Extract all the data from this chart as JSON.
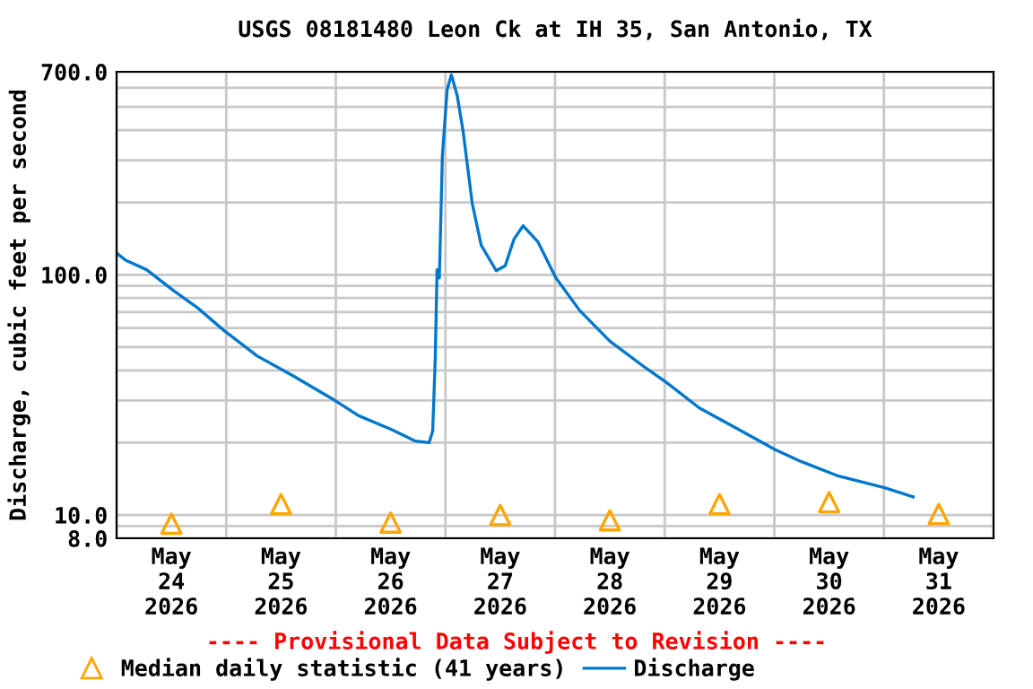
{
  "chart_data": {
    "type": "line",
    "title": "USGS 08181480 Leon Ck at IH 35, San Antonio, TX",
    "ylabel": "Discharge, cubic feet per second",
    "log": "y",
    "xlim": [
      "2026-05-24T00:00",
      "2026-06-01T00:00"
    ],
    "xticks": [
      {
        "value": "2026-05-24T00:00",
        "label": null
      },
      {
        "value": "2026-05-24T12:00",
        "label": "May\n24\n2026"
      },
      {
        "value": "2026-05-25T00:00",
        "label": null
      },
      {
        "value": "2026-05-25T12:00",
        "label": "May\n25\n2026"
      },
      {
        "value": "2026-05-26T00:00",
        "label": null
      },
      {
        "value": "2026-05-26T12:00",
        "label": "May\n26\n2026"
      },
      {
        "value": "2026-05-27T00:00",
        "label": null
      },
      {
        "value": "2026-05-27T12:00",
        "label": "May\n27\n2026"
      },
      {
        "value": "2026-05-28T00:00",
        "label": null
      },
      {
        "value": "2026-05-28T12:00",
        "label": "May\n28\n2026"
      },
      {
        "value": "2026-05-29T00:00",
        "label": null
      },
      {
        "value": "2026-05-29T12:00",
        "label": "May\n29\n2026"
      },
      {
        "value": "2026-05-30T00:00",
        "label": null
      },
      {
        "value": "2026-05-30T12:00",
        "label": "May\n30\n2026"
      },
      {
        "value": "2026-05-31T00:00",
        "label": null
      },
      {
        "value": "2026-05-31T12:00",
        "label": "May\n31\n2026"
      },
      {
        "value": "2026-06-01T00:00",
        "label": null
      }
    ],
    "ylim": [
      8,
      700
    ],
    "yticks": [
      {
        "value": 8,
        "label": "8.0"
      },
      {
        "value": 9,
        "label": null
      },
      {
        "value": 10,
        "label": "10.0"
      },
      {
        "value": 20,
        "label": null
      },
      {
        "value": 30,
        "label": null
      },
      {
        "value": 40,
        "label": null
      },
      {
        "value": 50,
        "label": null
      },
      {
        "value": 60,
        "label": null
      },
      {
        "value": 70,
        "label": null
      },
      {
        "value": 80,
        "label": null
      },
      {
        "value": 90,
        "label": null
      },
      {
        "value": 100,
        "label": "100.0"
      },
      {
        "value": 200,
        "label": null
      },
      {
        "value": 300,
        "label": null
      },
      {
        "value": 400,
        "label": null
      },
      {
        "value": 500,
        "label": null
      },
      {
        "value": 600,
        "label": null
      },
      {
        "value": 700,
        "label": "700.0"
      }
    ],
    "grid": true,
    "legend": "bottom",
    "series": [
      {
        "name": "Median daily statistic (41 years)",
        "type": "scatter",
        "marker": "triangle",
        "color": "#ffa500",
        "x": [
          "2026-05-24T12:00",
          "2026-05-25T12:00",
          "2026-05-26T12:00",
          "2026-05-27T12:00",
          "2026-05-28T12:00",
          "2026-05-29T12:00",
          "2026-05-30T12:00",
          "2026-05-31T12:00"
        ],
        "values": [
          9.2,
          11.1,
          9.3,
          10.0,
          9.5,
          11.1,
          11.3,
          10.1
        ]
      },
      {
        "name": "Discharge",
        "color": "#0077cc",
        "x": [
          "2026-05-24T00:16",
          "2026-05-24T01:58",
          "2026-05-24T06:34",
          "2026-05-24T12:27",
          "2026-05-24T17:40",
          "2026-05-24T23:34",
          "2026-05-25T06:44",
          "2026-05-25T14:35",
          "2026-05-25T23:47",
          "2026-05-26T05:00",
          "2026-05-26T12:11",
          "2026-05-26T17:27",
          "2026-05-26T20:26",
          "2026-05-26T21:13",
          "2026-05-26T21:46",
          "2026-05-26T22:10",
          "2026-05-26T22:40",
          "2026-05-26T23:20",
          "2026-05-27T00:22",
          "2026-05-27T01:18",
          "2026-05-27T02:35",
          "2026-05-27T03:53",
          "2026-05-27T05:51",
          "2026-05-27T07:49",
          "2026-05-27T11:07",
          "2026-05-27T13:05",
          "2026-05-27T15:02",
          "2026-05-27T17:00",
          "2026-05-27T20:16",
          "2026-05-28T00:11",
          "2026-05-28T05:24",
          "2026-05-28T11:58",
          "2026-05-28T19:48",
          "2026-05-29T00:24",
          "2026-05-29T07:36",
          "2026-05-29T16:45",
          "2026-05-30T00:12",
          "2026-05-30T05:51",
          "2026-05-30T13:42",
          "2026-05-31T00:09",
          "2026-05-31T06:25"
        ],
        "values": [
          122,
          115,
          105,
          86,
          73,
          58.5,
          46,
          38,
          30,
          25.9,
          22.7,
          20.3,
          20,
          22.4,
          44.7,
          105,
          97,
          313,
          589,
          680,
          556,
          394,
          199,
          133,
          104,
          109,
          141,
          160,
          137,
          97,
          71,
          53,
          41,
          35.6,
          27.9,
          22.4,
          18.7,
          16.7,
          14.6,
          13,
          11.9
        ]
      }
    ],
    "annotations": [
      "---- Provisional Data Subject to Revision ----"
    ]
  }
}
